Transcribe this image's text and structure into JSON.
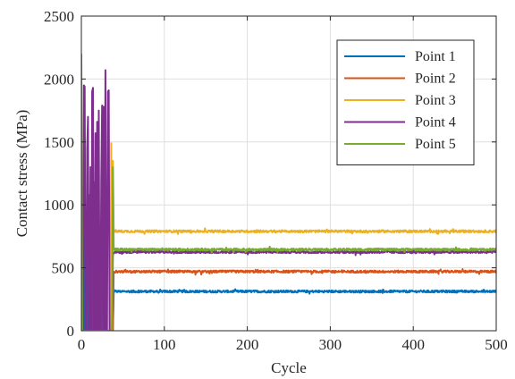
{
  "chart_data": {
    "type": "line",
    "xlabel": "Cycle",
    "ylabel": "Contact stress (MPa)",
    "xlim": [
      0,
      500
    ],
    "ylim": [
      0,
      2500
    ],
    "xticks": [
      0,
      100,
      200,
      300,
      400,
      500
    ],
    "yticks": [
      0,
      500,
      1000,
      1500,
      2000,
      2500
    ],
    "xtick_labels": [
      "0",
      "100",
      "200",
      "300",
      "400",
      "500"
    ],
    "ytick_labels": [
      "0",
      "500",
      "1000",
      "1500",
      "2000",
      "2500"
    ],
    "grid": true,
    "legend_position": "top-right",
    "series": [
      {
        "name": "Point 1",
        "color": "#0072BD",
        "transient": [
          [
            0,
            0
          ],
          [
            1,
            0
          ],
          [
            2,
            0
          ],
          [
            3,
            0
          ],
          [
            4,
            850
          ],
          [
            5,
            0
          ],
          [
            6,
            0
          ],
          [
            7,
            0
          ],
          [
            8,
            1150
          ],
          [
            9,
            0
          ],
          [
            10,
            1080
          ],
          [
            11,
            0
          ],
          [
            12,
            0
          ],
          [
            13,
            1000
          ],
          [
            14,
            0
          ],
          [
            15,
            0
          ],
          [
            16,
            1180
          ],
          [
            17,
            0
          ],
          [
            18,
            0
          ],
          [
            19,
            1100
          ],
          [
            20,
            0
          ],
          [
            22,
            0
          ],
          [
            24,
            0
          ],
          [
            26,
            1170
          ],
          [
            28,
            0
          ],
          [
            30,
            0
          ],
          [
            32,
            0
          ],
          [
            34,
            0
          ],
          [
            36,
            0
          ],
          [
            38,
            0
          ],
          [
            39,
            300
          ]
        ],
        "steady_mean": 312,
        "steady_range": [
          40,
          500
        ]
      },
      {
        "name": "Point 2",
        "color": "#D95319",
        "transient": [
          [
            0,
            0
          ],
          [
            10,
            0
          ],
          [
            20,
            0
          ],
          [
            30,
            0
          ],
          [
            36,
            0
          ],
          [
            38,
            0
          ],
          [
            39,
            470
          ]
        ],
        "steady_mean": 470,
        "steady_range": [
          40,
          500
        ]
      },
      {
        "name": "Point 3",
        "color": "#EDB120",
        "transient": [
          [
            0,
            0
          ],
          [
            10,
            0
          ],
          [
            20,
            0
          ],
          [
            30,
            0
          ],
          [
            35,
            0
          ],
          [
            36,
            1490
          ],
          [
            37,
            0
          ],
          [
            38,
            1350
          ],
          [
            39,
            790
          ]
        ],
        "steady_mean": 790,
        "steady_range": [
          40,
          500
        ]
      },
      {
        "name": "Point 4",
        "color": "#7E2F8E",
        "transient": [
          [
            0,
            0
          ],
          [
            1,
            0
          ],
          [
            2,
            0
          ],
          [
            3,
            1950
          ],
          [
            4,
            1940
          ],
          [
            5,
            0
          ],
          [
            6,
            0
          ],
          [
            7,
            1450
          ],
          [
            8,
            1700
          ],
          [
            9,
            0
          ],
          [
            10,
            0
          ],
          [
            11,
            1300
          ],
          [
            12,
            0
          ],
          [
            13,
            1900
          ],
          [
            14,
            1930
          ],
          [
            15,
            0
          ],
          [
            16,
            0
          ],
          [
            17,
            1570
          ],
          [
            18,
            0
          ],
          [
            19,
            1660
          ],
          [
            20,
            0
          ],
          [
            21,
            1750
          ],
          [
            22,
            0
          ],
          [
            23,
            0
          ],
          [
            24,
            1200
          ],
          [
            25,
            1790
          ],
          [
            26,
            0
          ],
          [
            27,
            1780
          ],
          [
            28,
            0
          ],
          [
            29,
            2070
          ],
          [
            30,
            0
          ],
          [
            31,
            0
          ],
          [
            32,
            1900
          ],
          [
            33,
            1910
          ],
          [
            34,
            0
          ],
          [
            35,
            0
          ],
          [
            36,
            0
          ],
          [
            37,
            0
          ],
          [
            38,
            600
          ],
          [
            39,
            620
          ]
        ],
        "steady_mean": 625,
        "steady_range": [
          40,
          500
        ]
      },
      {
        "name": "Point 5",
        "color": "#77AC30",
        "transient": [
          [
            0,
            2200
          ],
          [
            1,
            0
          ],
          [
            2,
            0
          ],
          [
            10,
            0
          ],
          [
            20,
            0
          ],
          [
            30,
            0
          ],
          [
            35,
            0
          ],
          [
            36,
            0
          ],
          [
            37,
            0
          ],
          [
            38,
            1300
          ],
          [
            39,
            660
          ]
        ],
        "steady_mean": 645,
        "steady_range": [
          40,
          500
        ]
      }
    ]
  }
}
